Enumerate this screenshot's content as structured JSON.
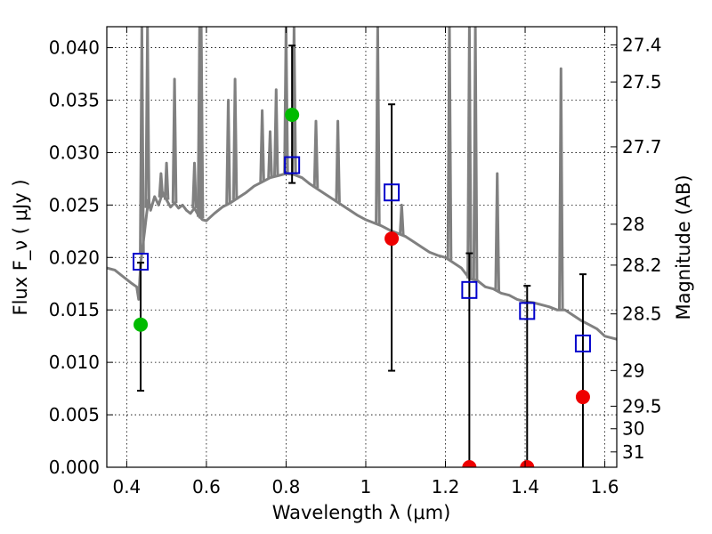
{
  "chart_data": {
    "type": "scatter",
    "xlabel": "Wavelength  λ (μm)",
    "ylabel": "Flux  F_ν  ( μJy )",
    "ylabel_right": "Magnitude (AB)",
    "xlim": [
      0.35,
      1.63
    ],
    "ylim": [
      0.0,
      0.042
    ],
    "grid": true,
    "x_ticks": [
      0.4,
      0.6,
      0.8,
      1.0,
      1.2,
      1.4,
      1.6
    ],
    "x_tick_labels": [
      "0.4",
      "0.6",
      "0.8",
      "1",
      "1.2",
      "1.4",
      "1.6"
    ],
    "y_ticks": [
      0.0,
      0.005,
      0.01,
      0.015,
      0.02,
      0.025,
      0.03,
      0.035,
      0.04
    ],
    "y_tick_labels": [
      "0.000",
      "0.005",
      "0.010",
      "0.015",
      "0.020",
      "0.025",
      "0.030",
      "0.035",
      "0.040"
    ],
    "right_ticks": [
      {
        "label": "27.4",
        "flux": 0.04027
      },
      {
        "label": "27.5",
        "flux": 0.03673
      },
      {
        "label": "27.7",
        "flux": 0.03055
      },
      {
        "label": "28",
        "flux": 0.02317
      },
      {
        "label": "28.2",
        "flux": 0.01927
      },
      {
        "label": "28.5",
        "flux": 0.01462
      },
      {
        "label": "29",
        "flux": 0.00922
      },
      {
        "label": "29.5",
        "flux": 0.00582
      },
      {
        "label": "30",
        "flux": 0.00367
      },
      {
        "label": "31",
        "flux": 0.00146
      }
    ],
    "series": [
      {
        "type": "line",
        "color": "#808080",
        "x": [
          0.35,
          0.37,
          0.39,
          0.41,
          0.425,
          0.43,
          0.435,
          0.44,
          0.445,
          0.45,
          0.455,
          0.46,
          0.47,
          0.48,
          0.49,
          0.5,
          0.51,
          0.52,
          0.53,
          0.54,
          0.55,
          0.56,
          0.57,
          0.58,
          0.585,
          0.59,
          0.6,
          0.62,
          0.64,
          0.66,
          0.68,
          0.7,
          0.72,
          0.74,
          0.76,
          0.78,
          0.8,
          0.82,
          0.84,
          0.86,
          0.88,
          0.9,
          0.92,
          0.94,
          0.96,
          0.98,
          1.0,
          1.02,
          1.04,
          1.06,
          1.08,
          1.1,
          1.12,
          1.14,
          1.16,
          1.18,
          1.2,
          1.22,
          1.24,
          1.26,
          1.28,
          1.3,
          1.32,
          1.34,
          1.36,
          1.38,
          1.4,
          1.42,
          1.44,
          1.46,
          1.48,
          1.5,
          1.52,
          1.54,
          1.56,
          1.58,
          1.6,
          1.63
        ],
        "y": [
          0.019,
          0.0188,
          0.0182,
          0.0176,
          0.0172,
          0.016,
          0.0195,
          0.021,
          0.0225,
          0.0242,
          0.0255,
          0.0245,
          0.0258,
          0.025,
          0.0262,
          0.0255,
          0.0248,
          0.0252,
          0.0247,
          0.025,
          0.0245,
          0.0242,
          0.0247,
          0.024,
          0.0238,
          0.0236,
          0.0235,
          0.0242,
          0.0248,
          0.0252,
          0.0257,
          0.0262,
          0.0268,
          0.0272,
          0.0276,
          0.0278,
          0.028,
          0.0279,
          0.0276,
          0.027,
          0.0265,
          0.026,
          0.0255,
          0.025,
          0.0245,
          0.024,
          0.0236,
          0.0233,
          0.023,
          0.0226,
          0.0223,
          0.022,
          0.0215,
          0.021,
          0.0205,
          0.0202,
          0.02,
          0.0195,
          0.019,
          0.018,
          0.0178,
          0.0172,
          0.017,
          0.0166,
          0.0164,
          0.016,
          0.0158,
          0.0157,
          0.0155,
          0.0153,
          0.015,
          0.015,
          0.0145,
          0.014,
          0.0136,
          0.0132,
          0.0125,
          0.0122
        ]
      },
      {
        "type": "line-spikes",
        "color": "#808080",
        "spikes": [
          {
            "x": 0.438,
            "peak": 0.042
          },
          {
            "x": 0.452,
            "peak": 0.042
          },
          {
            "x": 0.486,
            "peak": 0.028
          },
          {
            "x": 0.5,
            "peak": 0.029
          },
          {
            "x": 0.52,
            "peak": 0.037
          },
          {
            "x": 0.57,
            "peak": 0.029
          },
          {
            "x": 0.583,
            "peak": 0.042
          },
          {
            "x": 0.587,
            "peak": 0.042
          },
          {
            "x": 0.655,
            "peak": 0.035
          },
          {
            "x": 0.672,
            "peak": 0.037
          },
          {
            "x": 0.74,
            "peak": 0.034
          },
          {
            "x": 0.76,
            "peak": 0.032
          },
          {
            "x": 0.775,
            "peak": 0.036
          },
          {
            "x": 0.8,
            "peak": 0.042
          },
          {
            "x": 0.82,
            "peak": 0.042
          },
          {
            "x": 0.875,
            "peak": 0.033
          },
          {
            "x": 0.93,
            "peak": 0.033
          },
          {
            "x": 1.03,
            "peak": 0.042
          },
          {
            "x": 1.09,
            "peak": 0.025
          },
          {
            "x": 1.21,
            "peak": 0.042
          },
          {
            "x": 1.26,
            "peak": 0.042
          },
          {
            "x": 1.275,
            "peak": 0.042
          },
          {
            "x": 1.33,
            "peak": 0.028
          },
          {
            "x": 1.49,
            "peak": 0.038
          }
        ]
      },
      {
        "type": "errorbar",
        "color": "#000000",
        "x": [
          0.435,
          0.815,
          1.065,
          1.26,
          1.405,
          1.545
        ],
        "y": [
          0.0136,
          0.0336,
          0.0218,
          0.0,
          0.0,
          0.0067
        ],
        "yerr_low": [
          0.0073,
          0.0271,
          0.0092,
          0.0,
          0.0,
          0.0
        ],
        "yerr_high": [
          0.0195,
          0.0402,
          0.0346,
          0.0204,
          0.0173,
          0.0184
        ]
      },
      {
        "type": "scatter",
        "marker": "circle",
        "x": [
          0.435,
          0.815,
          1.065,
          1.26,
          1.405,
          1.545
        ],
        "y": [
          0.0136,
          0.0336,
          0.0218,
          0.0,
          0.0,
          0.0067
        ],
        "colors": [
          "#00bb00",
          "#00bb00",
          "#ee0000",
          "#ee0000",
          "#ee0000",
          "#ee0000"
        ]
      },
      {
        "type": "scatter",
        "marker": "open-square",
        "color": "#0000cc",
        "x": [
          0.435,
          0.815,
          1.065,
          1.26,
          1.405,
          1.545
        ],
        "y": [
          0.0196,
          0.0288,
          0.0262,
          0.0169,
          0.0149,
          0.0118
        ]
      }
    ]
  }
}
